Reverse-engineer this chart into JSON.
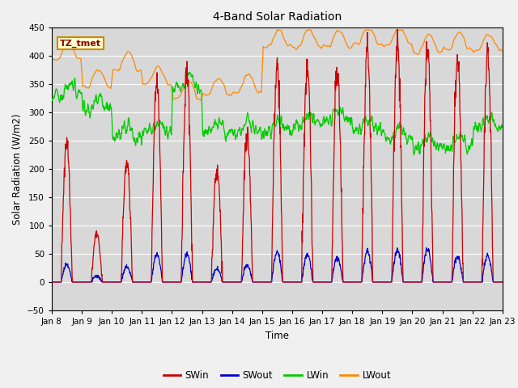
{
  "title": "4-Band Solar Radiation",
  "xlabel": "Time",
  "ylabel": "Solar Radiation (W/m2)",
  "annotation": "TZ_tmet",
  "ylim": [
    -50,
    450
  ],
  "xlim": [
    0,
    360
  ],
  "fig_bg_color": "#f0f0f0",
  "plot_bg_color": "#d8d8d8",
  "colors": {
    "SWin": "#cc0000",
    "SWout": "#0000cc",
    "LWin": "#00cc00",
    "LWout": "#ff8800"
  },
  "legend_labels": [
    "SWin",
    "SWout",
    "LWin",
    "LWout"
  ],
  "tick_labels": [
    "Jan 8",
    "Jan 9",
    "Jan 10",
    "Jan 11",
    "Jan 12",
    "Jan 13",
    "Jan 14",
    "Jan 15",
    "Jan 16",
    "Jan 17",
    "Jan 18",
    "Jan 19",
    "Jan 20",
    "Jan 21",
    "Jan 22",
    "Jan 23"
  ],
  "tick_positions": [
    0,
    24,
    48,
    72,
    96,
    120,
    144,
    168,
    192,
    216,
    240,
    264,
    288,
    312,
    336,
    360
  ],
  "yticks": [
    -50,
    0,
    50,
    100,
    150,
    200,
    250,
    300,
    350,
    400,
    450
  ],
  "num_days": 15,
  "total_hours": 360,
  "swin_peaks": [
    250,
    85,
    210,
    355,
    370,
    200,
    260,
    385,
    385,
    375,
    410,
    410,
    405,
    400,
    410
  ],
  "lwout_base": [
    395,
    345,
    375,
    350,
    325,
    330,
    335,
    415,
    415,
    415,
    420,
    420,
    405,
    410,
    408
  ],
  "lwin_base": [
    330,
    305,
    255,
    265,
    345,
    265,
    265,
    265,
    278,
    285,
    268,
    255,
    238,
    238,
    275
  ]
}
